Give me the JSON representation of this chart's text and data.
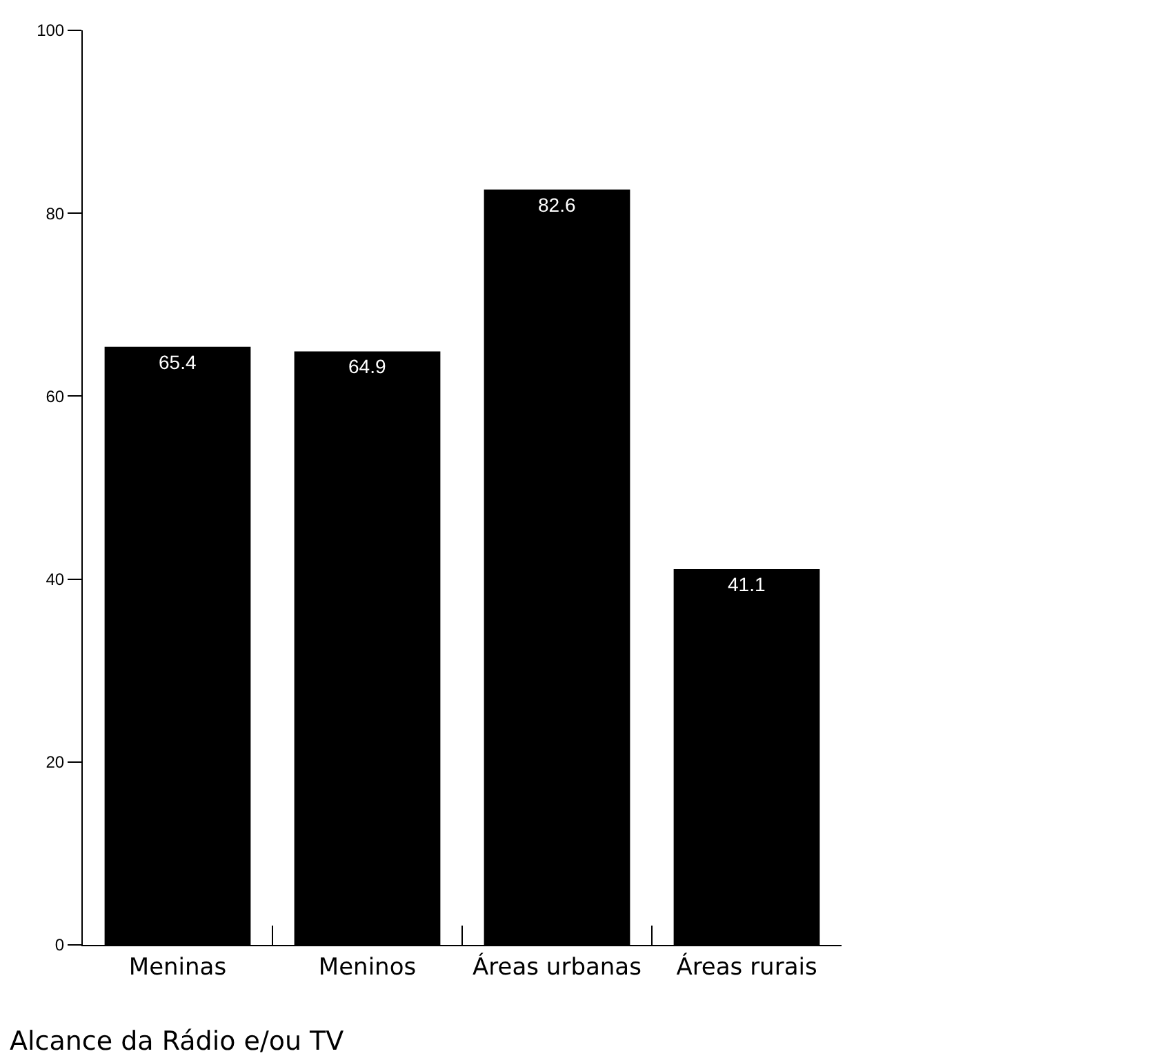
{
  "chart_data": {
    "type": "bar",
    "xlabel": "Alcance da Rádio e/ou TV",
    "categories": [
      "Meninas",
      "Meninos",
      "Áreas urbanas",
      "Áreas rurais"
    ],
    "values": [
      65.4,
      64.9,
      82.6,
      41.1
    ],
    "color": "#000000",
    "ylim": [
      0,
      100
    ],
    "yticks": [
      0,
      20,
      40,
      60,
      80,
      100
    ],
    "grid": false,
    "data_labels": true
  }
}
